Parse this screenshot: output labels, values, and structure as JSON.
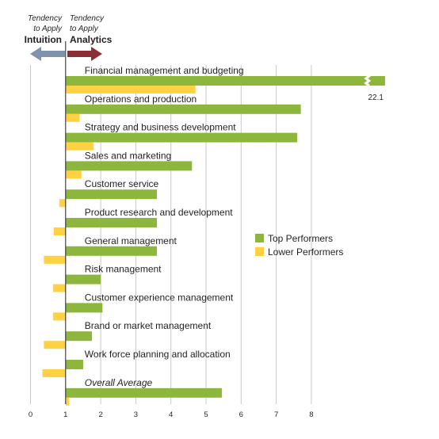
{
  "header": {
    "left_small": [
      "Tendency",
      "to Apply"
    ],
    "left_big": "Intuition",
    "right_small": [
      "Tendency",
      "to Apply"
    ],
    "right_big": "Analytics",
    "left_arrow_color": "#7f93ad",
    "right_arrow_color": "#8b2e35"
  },
  "chart_data": {
    "type": "bar",
    "orientation": "horizontal",
    "x_ticks": [
      0,
      1,
      2,
      3,
      4,
      5,
      6,
      7,
      8
    ],
    "xlim": [
      0,
      10.1
    ],
    "baseline": 1,
    "grid": true,
    "legend_position": "right-middle",
    "categories": [
      "Financial management and budgeting",
      "Operations and production",
      "Strategy and business development",
      "Sales and marketing",
      "Customer service",
      "Product research and development",
      "General management",
      "Risk management",
      "Customer experience management",
      "Brand or market management",
      "Work force planning and allocation",
      "Overall Average"
    ],
    "italic_categories": [
      11
    ],
    "series": [
      {
        "name": "Top Performers",
        "color": "#8db63c",
        "values": [
          22.1,
          7.7,
          7.6,
          4.6,
          3.6,
          3.6,
          3.6,
          2.0,
          2.05,
          1.75,
          1.5,
          5.45
        ]
      },
      {
        "name": "Lower Performers",
        "color": "#ffd143",
        "values": [
          4.7,
          1.4,
          1.8,
          1.45,
          0.82,
          0.66,
          0.38,
          0.64,
          0.64,
          0.38,
          0.34,
          1.1
        ]
      }
    ],
    "axis_break": {
      "category_index": 0,
      "label": "22.1",
      "display_value": 10.1,
      "break_at": 9.6
    }
  }
}
